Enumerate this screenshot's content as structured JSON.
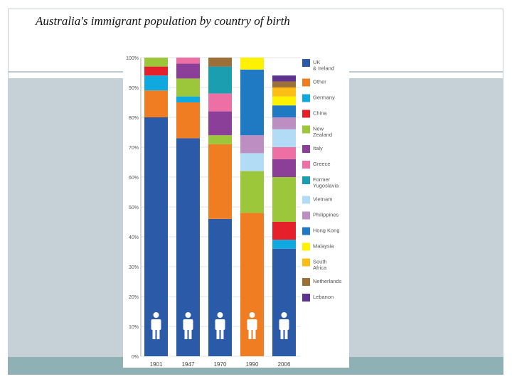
{
  "slide": {
    "title": "Australia's immigrant population by country of birth"
  },
  "colors": {
    "frame": "#c3ced6",
    "panel": "#c5d1d7",
    "band": "#8fb0b4"
  },
  "icons": [
    "person-icon"
  ],
  "chart_data": {
    "type": "bar",
    "stacked": true,
    "title": "",
    "xlabel": "",
    "ylabel": "",
    "ylim": [
      0,
      100
    ],
    "y_ticks": [
      "0%",
      "10%",
      "20%",
      "30%",
      "40%",
      "50%",
      "60%",
      "70%",
      "80%",
      "90%",
      "100%"
    ],
    "categories": [
      "1901",
      "1947",
      "1970",
      "1990",
      "2006"
    ],
    "grid": true,
    "legend_position": "right",
    "series": [
      {
        "name": "UK & Ireland",
        "color": "#2a5aa8",
        "values": [
          80,
          73,
          46,
          0,
          36
        ]
      },
      {
        "name": "Other",
        "color": "#f07d22",
        "values": [
          9,
          12,
          25,
          48,
          0
        ]
      },
      {
        "name": "Germany",
        "color": "#0fa9e0",
        "values": [
          5,
          2,
          0,
          0,
          3
        ]
      },
      {
        "name": "China",
        "color": "#e5202b",
        "values": [
          3,
          0,
          0,
          0,
          6
        ]
      },
      {
        "name": "New Zealand",
        "color": "#9dc73b",
        "values": [
          3,
          6,
          3,
          14,
          15
        ]
      },
      {
        "name": "Italy",
        "color": "#8b3f99",
        "values": [
          0,
          5,
          8,
          0,
          6
        ]
      },
      {
        "name": "Greece",
        "color": "#ed6fa3",
        "values": [
          0,
          2,
          6,
          0,
          4
        ]
      },
      {
        "name": "Former Yugoslavia",
        "color": "#1b9fb0",
        "values": [
          0,
          0,
          9,
          0,
          0
        ]
      },
      {
        "name": "Vietnam",
        "color": "#b2dcf5",
        "values": [
          0,
          0,
          0,
          6,
          6
        ]
      },
      {
        "name": "Philippines",
        "color": "#bd8ec1",
        "values": [
          0,
          0,
          0,
          6,
          4
        ]
      },
      {
        "name": "Hong Kong",
        "color": "#1f79c3",
        "values": [
          0,
          0,
          0,
          22,
          4
        ]
      },
      {
        "name": "Malaysia",
        "color": "#fef200",
        "values": [
          0,
          0,
          0,
          4,
          3
        ]
      },
      {
        "name": "South Africa",
        "color": "#fbbc13",
        "values": [
          0,
          0,
          0,
          0,
          3
        ]
      },
      {
        "name": "Netherlands",
        "color": "#9c6e38",
        "values": [
          0,
          0,
          3,
          0,
          2
        ]
      },
      {
        "name": "Lebanon",
        "color": "#5f3290",
        "values": [
          0,
          0,
          0,
          0,
          2
        ]
      }
    ],
    "legend": [
      "UK & Ireland",
      "Other",
      "Germany",
      "China",
      "New Zealand",
      "Italy",
      "Greece",
      "Former Yugoslavia",
      "Vietnam",
      "Philippines",
      "Hong Kong",
      "Malaysia",
      "South Africa",
      "Netherlands",
      "Lebanon"
    ]
  }
}
